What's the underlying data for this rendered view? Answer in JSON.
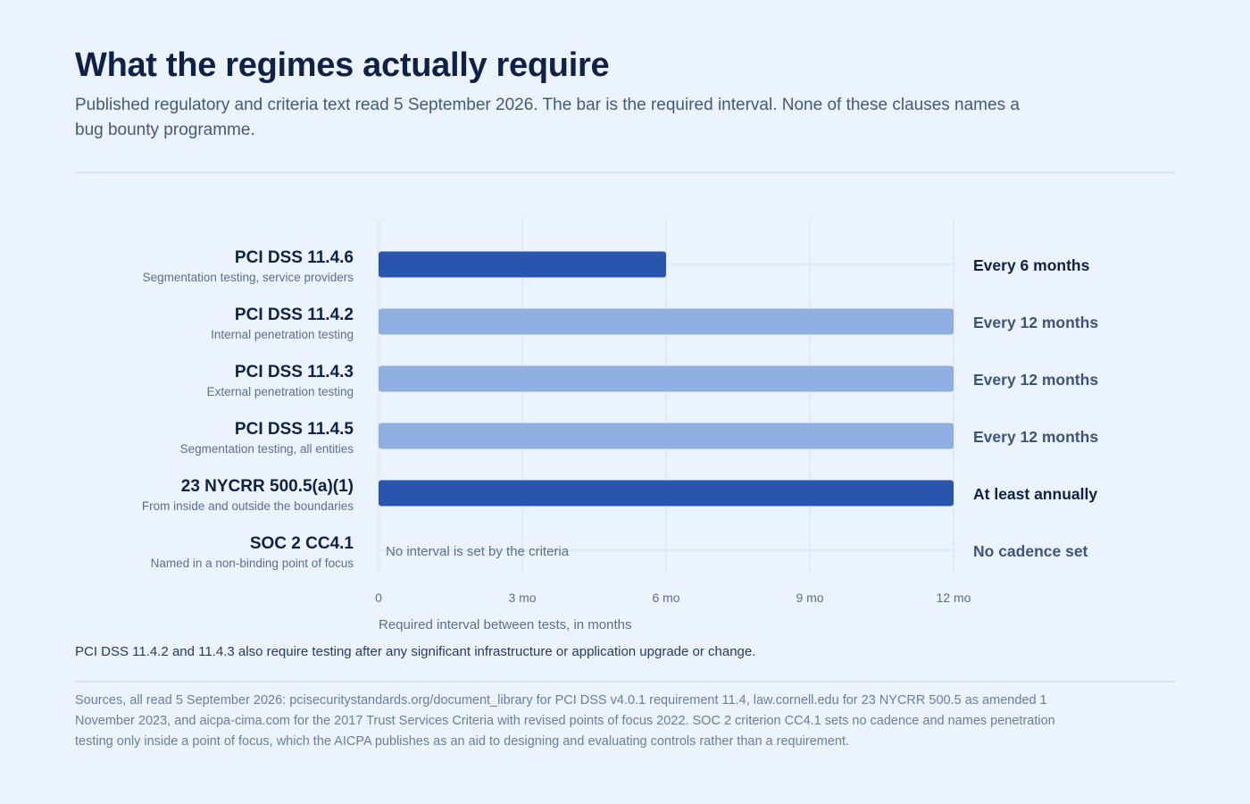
{
  "header": {
    "title": "What the regimes actually require",
    "subtitle": "Published regulatory and criteria text read 5 September 2026. The bar is the required interval. None of these clauses names a bug bounty programme."
  },
  "chart_data": {
    "type": "bar",
    "orientation": "horizontal",
    "categories": [
      "PCI DSS 11.4.6",
      "PCI DSS 11.4.2",
      "PCI DSS 11.4.3",
      "PCI DSS 11.4.5",
      "23 NYCRR 500.5(a)(1)",
      "SOC 2 CC4.1"
    ],
    "descriptions": [
      "Segmentation testing, service providers",
      "Internal penetration testing",
      "External penetration testing",
      "Segmentation testing, all entities",
      "From inside and outside the boundaries",
      "Named in a non-binding point of focus"
    ],
    "values": [
      6,
      12,
      12,
      12,
      12,
      null
    ],
    "value_labels": [
      "Every 6 months",
      "Every 12 months",
      "Every 12 months",
      "Every 12 months",
      "At least annually",
      "No cadence set"
    ],
    "emphasis": [
      true,
      false,
      false,
      false,
      true,
      false
    ],
    "colors": {
      "emphasis": "#2955ad",
      "normal": "#8fafe2",
      "label_emphasis": "#0f2147",
      "label_normal": "#3d5380"
    },
    "null_note": "No interval is set by the criteria",
    "x_ticks": [
      0,
      3,
      6,
      9,
      12
    ],
    "x_tick_labels": [
      "0",
      "3 mo",
      "6 mo",
      "9 mo",
      "12 mo"
    ],
    "xlim": [
      0,
      12
    ],
    "xlabel": "Required interval between tests, in months",
    "grid": true
  },
  "footer": {
    "note": "PCI DSS 11.4.2 and 11.4.3 also require testing after any significant infrastructure or application upgrade or change.",
    "sources": "Sources, all read 5 September 2026: pcisecuritystandards.org/document_library for PCI DSS v4.0.1 requirement 11.4, law.cornell.edu for 23 NYCRR 500.5 as amended 1 November 2023, and aicpa-cima.com for the 2017 Trust Services Criteria with revised points of focus 2022. SOC 2 criterion CC4.1 sets no cadence and names penetration testing only inside a point of focus, which the AICPA publishes as an aid to designing and evaluating controls rather than a requirement."
  }
}
